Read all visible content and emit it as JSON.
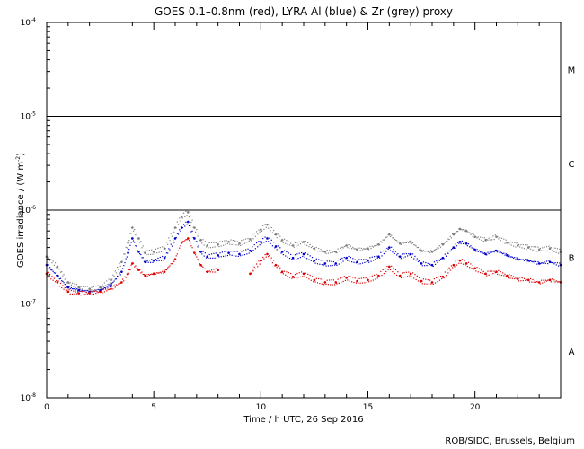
{
  "chart_data": {
    "type": "scatter",
    "title": "GOES 0.1–0.8nm (red), LYRA Al (blue) & Zr (grey) proxy",
    "xlabel": "Time / h UTC, 26 Sep 2016",
    "ylabel_main": "GOES irradiance / (W m",
    "ylabel_exp": "-2",
    "ylabel_close": ")",
    "xlim": [
      0,
      24
    ],
    "ylim": [
      1e-08,
      0.0001
    ],
    "yscale": "log",
    "x_ticks": [
      {
        "value": 0,
        "label": "0"
      },
      {
        "value": 5,
        "label": "5"
      },
      {
        "value": 10,
        "label": "10"
      },
      {
        "value": 15,
        "label": "15"
      },
      {
        "value": 20,
        "label": "20"
      }
    ],
    "y_ticks": [
      {
        "value": 1e-08,
        "base": "10",
        "exp": "-8"
      },
      {
        "value": 1e-07,
        "base": "10",
        "exp": "-7"
      },
      {
        "value": 1e-06,
        "base": "10",
        "exp": "-6"
      },
      {
        "value": 1e-05,
        "base": "10",
        "exp": "-5"
      },
      {
        "value": 0.0001,
        "base": "10",
        "exp": "-4"
      }
    ],
    "class_lines": [
      1e-07,
      1e-06,
      1e-05
    ],
    "class_labels": [
      {
        "label": "A",
        "y": 3.16e-08
      },
      {
        "label": "B",
        "y": 3.16e-07
      },
      {
        "label": "C",
        "y": 3.16e-06
      },
      {
        "label": "M",
        "y": 3.16e-05
      }
    ],
    "x": [
      0,
      0.5,
      1,
      1.5,
      2,
      2.5,
      3,
      3.5,
      3.8,
      4,
      4.3,
      4.6,
      5,
      5.5,
      6,
      6.3,
      6.6,
      6.9,
      7.2,
      7.5,
      8,
      8.5,
      9,
      9.5,
      10,
      10.3,
      10.7,
      11,
      11.5,
      12,
      12.5,
      13,
      13.5,
      14,
      14.5,
      15,
      15.5,
      16,
      16.5,
      17,
      17.5,
      18,
      18.5,
      19,
      19.3,
      19.6,
      20,
      20.5,
      21,
      21.5,
      22,
      22.5,
      23,
      23.5,
      24
    ],
    "series": [
      {
        "name": "Zr",
        "color": "#808080",
        "values": [
          3.2e-07,
          2.5e-07,
          1.7e-07,
          1.5e-07,
          1.45e-07,
          1.5e-07,
          1.8e-07,
          2.8e-07,
          4.5e-07,
          6.5e-07,
          5e-07,
          3.5e-07,
          3.6e-07,
          3.9e-07,
          6.5e-07,
          8.5e-07,
          9.5e-07,
          6.5e-07,
          4.8e-07,
          4.2e-07,
          4.3e-07,
          4.6e-07,
          4.4e-07,
          4.9e-07,
          6.2e-07,
          7e-07,
          5.5e-07,
          4.8e-07,
          4.2e-07,
          4.6e-07,
          3.9e-07,
          3.6e-07,
          3.6e-07,
          4.2e-07,
          3.8e-07,
          3.9e-07,
          4.3e-07,
          5.5e-07,
          4.4e-07,
          4.6e-07,
          3.7e-07,
          3.6e-07,
          4.3e-07,
          5.5e-07,
          6.3e-07,
          6e-07,
          5.2e-07,
          4.8e-07,
          5.2e-07,
          4.5e-07,
          4.2e-07,
          4e-07,
          3.8e-07,
          3.9e-07,
          3.6e-07
        ]
      },
      {
        "name": "Al",
        "color": "#0000cc",
        "values": [
          2.6e-07,
          2e-07,
          1.5e-07,
          1.4e-07,
          1.35e-07,
          1.4e-07,
          1.6e-07,
          2.2e-07,
          3.5e-07,
          5e-07,
          3.6e-07,
          2.8e-07,
          2.9e-07,
          3.1e-07,
          5e-07,
          6.5e-07,
          7.5e-07,
          5e-07,
          3.6e-07,
          3.2e-07,
          3.3e-07,
          3.5e-07,
          3.4e-07,
          3.7e-07,
          4.6e-07,
          5e-07,
          4.1e-07,
          3.6e-07,
          3.1e-07,
          3.4e-07,
          2.9e-07,
          2.7e-07,
          2.7e-07,
          3.1e-07,
          2.8e-07,
          2.9e-07,
          3.2e-07,
          4e-07,
          3.2e-07,
          3.4e-07,
          2.7e-07,
          2.6e-07,
          3.1e-07,
          4e-07,
          4.6e-07,
          4.4e-07,
          3.8e-07,
          3.4e-07,
          3.7e-07,
          3.3e-07,
          3e-07,
          2.9e-07,
          2.7e-07,
          2.8e-07,
          2.6e-07
        ]
      },
      {
        "name": "GOES",
        "color": "#dd0000",
        "values": [
          2.1e-07,
          1.7e-07,
          1.35e-07,
          1.3e-07,
          1.3e-07,
          1.35e-07,
          1.45e-07,
          1.7e-07,
          2.1e-07,
          2.7e-07,
          2.3e-07,
          2e-07,
          2.1e-07,
          2.2e-07,
          3e-07,
          4.5e-07,
          5e-07,
          3.5e-07,
          2.6e-07,
          2.2e-07,
          2.3e-07,
          null,
          null,
          2.1e-07,
          2.9e-07,
          3.4e-07,
          2.6e-07,
          2.2e-07,
          1.95e-07,
          2.1e-07,
          1.8e-07,
          1.7e-07,
          1.7e-07,
          1.9e-07,
          1.75e-07,
          1.8e-07,
          2e-07,
          2.5e-07,
          2e-07,
          2.1e-07,
          1.75e-07,
          1.7e-07,
          1.95e-07,
          2.6e-07,
          2.9e-07,
          2.7e-07,
          2.4e-07,
          2.1e-07,
          2.2e-07,
          2e-07,
          1.85e-07,
          1.8e-07,
          1.7e-07,
          1.8e-07,
          1.7e-07
        ]
      }
    ]
  },
  "footer": {
    "credit": "ROB/SIDC, Brussels, Belgium"
  }
}
